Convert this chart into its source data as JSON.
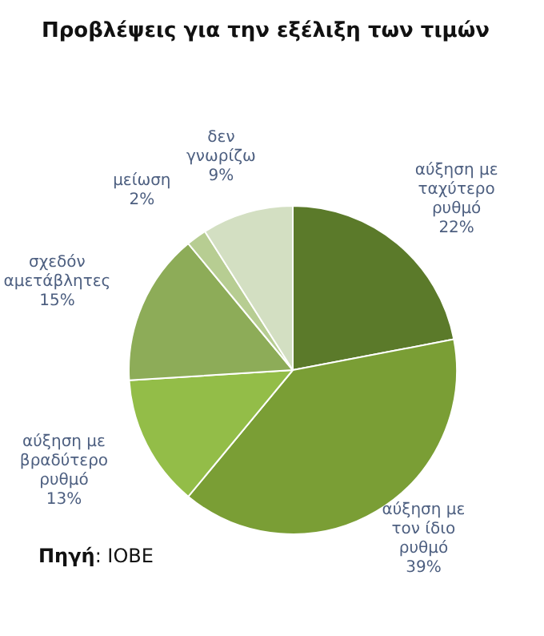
{
  "chart_data": {
    "type": "pie",
    "title": "Προβλέψεις για την εξέλιξη των τιμών",
    "categories": [
      "αύξηση με ταχύτερο ρυθμό",
      "αύξηση με τον ίδιο ρυθμό",
      "αύξηση με βραδύτερο ρυθμό",
      "σχεδόν αμετάβλητες",
      "μείωση",
      "δεν γνωρίζω"
    ],
    "values": [
      22,
      39,
      13,
      15,
      2,
      9
    ],
    "value_labels": [
      "22%",
      "39%",
      "13%",
      "15%",
      "2%",
      "9%"
    ],
    "colors": [
      "#5b7a2a",
      "#7a9e35",
      "#93bd48",
      "#8dac58",
      "#b7cd92",
      "#d3dfc2"
    ],
    "annotations": [
      "Πηγή: ΙΟΒΕ"
    ]
  }
}
